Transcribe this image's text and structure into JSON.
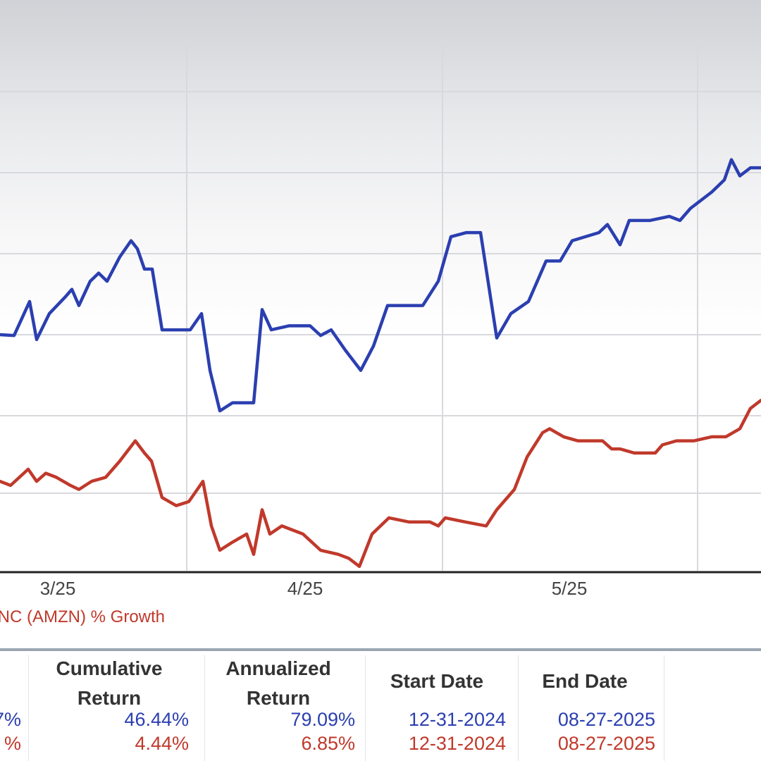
{
  "chart_data": {
    "type": "line",
    "x_ticks": [
      "3/25",
      "4/25",
      "5/25"
    ],
    "legend": "INC (AMZN) % Growth",
    "grid": true,
    "series": [
      {
        "color": "#2b3fb0",
        "points": [
          [
            0,
            0.0
          ],
          [
            20,
            -0.1
          ],
          [
            42,
            4.1
          ],
          [
            52,
            -0.6
          ],
          [
            70,
            2.6
          ],
          [
            92,
            4.6
          ],
          [
            102,
            5.6
          ],
          [
            112,
            3.6
          ],
          [
            128,
            6.6
          ],
          [
            140,
            7.6
          ],
          [
            152,
            6.6
          ],
          [
            170,
            9.6
          ],
          [
            186,
            11.6
          ],
          [
            195,
            10.6
          ],
          [
            205,
            8.1
          ],
          [
            216,
            8.1
          ],
          [
            230,
            0.6
          ],
          [
            270,
            0.6
          ],
          [
            286,
            2.6
          ],
          [
            298,
            -4.4
          ],
          [
            312,
            -9.4
          ],
          [
            330,
            -8.4
          ],
          [
            360,
            -8.4
          ],
          [
            372,
            3.1
          ],
          [
            385,
            0.6
          ],
          [
            410,
            1.1
          ],
          [
            440,
            1.1
          ],
          [
            455,
            -0.1
          ],
          [
            470,
            0.6
          ],
          [
            490,
            -1.9
          ],
          [
            512,
            -4.4
          ],
          [
            530,
            -1.4
          ],
          [
            550,
            3.6
          ],
          [
            568,
            3.6
          ],
          [
            600,
            3.6
          ],
          [
            622,
            6.6
          ],
          [
            640,
            12.1
          ],
          [
            662,
            12.6
          ],
          [
            682,
            12.6
          ],
          [
            705,
            -0.4
          ],
          [
            725,
            2.6
          ],
          [
            750,
            4.1
          ],
          [
            775,
            9.1
          ],
          [
            795,
            9.1
          ],
          [
            812,
            11.6
          ],
          [
            850,
            12.6
          ],
          [
            862,
            13.6
          ],
          [
            880,
            11.1
          ],
          [
            893,
            14.1
          ],
          [
            922,
            14.1
          ],
          [
            950,
            14.6
          ],
          [
            965,
            14.1
          ],
          [
            980,
            15.6
          ],
          [
            1010,
            17.6
          ],
          [
            1028,
            19.1
          ],
          [
            1038,
            21.6
          ],
          [
            1050,
            19.6
          ],
          [
            1065,
            20.6
          ],
          [
            1080,
            20.6
          ]
        ]
      },
      {
        "color": "#c0392b",
        "points": [
          [
            0,
            -18.1
          ],
          [
            15,
            -18.6
          ],
          [
            40,
            -16.6
          ],
          [
            52,
            -18.1
          ],
          [
            65,
            -17.1
          ],
          [
            80,
            -17.6
          ],
          [
            100,
            -18.6
          ],
          [
            112,
            -19.1
          ],
          [
            130,
            -18.1
          ],
          [
            150,
            -17.6
          ],
          [
            170,
            -15.6
          ],
          [
            192,
            -13.1
          ],
          [
            205,
            -14.6
          ],
          [
            215,
            -15.6
          ],
          [
            230,
            -20.1
          ],
          [
            250,
            -21.1
          ],
          [
            268,
            -20.6
          ],
          [
            288,
            -18.1
          ],
          [
            300,
            -23.6
          ],
          [
            312,
            -26.6
          ],
          [
            330,
            -25.6
          ],
          [
            350,
            -24.6
          ],
          [
            360,
            -27.1
          ],
          [
            372,
            -21.6
          ],
          [
            383,
            -24.6
          ],
          [
            400,
            -23.6
          ],
          [
            430,
            -24.6
          ],
          [
            455,
            -26.6
          ],
          [
            480,
            -27.1
          ],
          [
            495,
            -27.6
          ],
          [
            510,
            -28.6
          ],
          [
            528,
            -24.6
          ],
          [
            552,
            -22.6
          ],
          [
            580,
            -23.1
          ],
          [
            610,
            -23.1
          ],
          [
            622,
            -23.6
          ],
          [
            632,
            -22.6
          ],
          [
            660,
            -23.1
          ],
          [
            690,
            -23.6
          ],
          [
            705,
            -21.6
          ],
          [
            730,
            -19.1
          ],
          [
            748,
            -15.1
          ],
          [
            770,
            -12.1
          ],
          [
            780,
            -11.6
          ],
          [
            800,
            -12.6
          ],
          [
            820,
            -13.1
          ],
          [
            855,
            -13.1
          ],
          [
            868,
            -14.1
          ],
          [
            880,
            -14.1
          ],
          [
            900,
            -14.6
          ],
          [
            930,
            -14.6
          ],
          [
            940,
            -13.6
          ],
          [
            960,
            -13.1
          ],
          [
            985,
            -13.1
          ],
          [
            1010,
            -12.6
          ],
          [
            1030,
            -12.6
          ],
          [
            1050,
            -11.6
          ],
          [
            1065,
            -9.1
          ],
          [
            1080,
            -8.1
          ]
        ]
      }
    ]
  },
  "table": {
    "headers": [
      "Cumulative\nReturn",
      "Annualized\nReturn",
      "Start Date",
      "End Date"
    ],
    "rows": [
      {
        "color": "#2b3fb0",
        "lead": "7%",
        "cumulative": "46.44%",
        "annualized": "79.09%",
        "start": "12-31-2024",
        "end": "08-27-2025"
      },
      {
        "color": "#c0392b",
        "lead": "%",
        "cumulative": "4.44%",
        "annualized": "6.85%",
        "start": "12-31-2024",
        "end": "08-27-2025"
      }
    ]
  }
}
